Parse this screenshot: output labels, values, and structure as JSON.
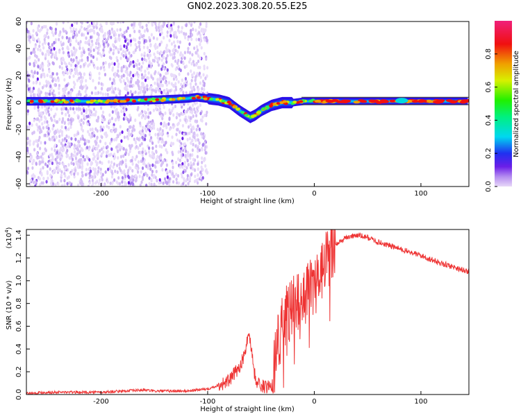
{
  "title": "GN02.2023.308.20.55.E25",
  "chart_data": [
    {
      "type": "heatmap",
      "xlabel": "Height of straight line (km)",
      "ylabel": "Frequency (Hz)",
      "xlim": [
        -270,
        145
      ],
      "ylim": [
        -62,
        60
      ],
      "xticks": [
        -200,
        -100,
        0,
        100
      ],
      "yticks": [
        -60,
        -40,
        -20,
        0,
        20,
        40,
        60
      ],
      "colorbar": {
        "label": "Normalized spectral amplitude",
        "range": [
          0.0,
          1.0
        ],
        "ticks": [
          "0.0",
          "0.2",
          "0.4",
          "0.6",
          "0.8"
        ],
        "colormap": "rainbow"
      },
      "ridge": {
        "x": [
          -270,
          -200,
          -150,
          -120,
          -110,
          -100,
          -90,
          -80,
          -70,
          -60,
          -55,
          -50,
          -40,
          -30,
          -20,
          -10,
          0,
          50,
          100,
          145
        ],
        "y": [
          1,
          1,
          2,
          3,
          4,
          3,
          2,
          0,
          -6,
          -11,
          -9,
          -6,
          -2,
          0,
          0,
          1,
          1,
          1,
          1,
          1
        ]
      }
    },
    {
      "type": "line",
      "xlabel": "Height of straight line (km)",
      "ylabel": "SNR (10 * v/v)",
      "yscale_label_base": "(x10",
      "yscale_label_exp": "4",
      "yscale_label_end": ")",
      "xlim": [
        -270,
        145
      ],
      "ylim": [
        0.0,
        1.45
      ],
      "xticks": [
        -200,
        -100,
        0,
        100
      ],
      "yticks": [
        "0.0",
        "0.2",
        "0.4",
        "0.6",
        "0.8",
        "1.0",
        "1.2",
        "1.4"
      ],
      "color": "#ee3333",
      "series": [
        {
          "x": [
            -270,
            -250,
            -200,
            -160,
            -150,
            -120,
            -100,
            -90,
            -80,
            -75,
            -70,
            -65,
            -62,
            -60,
            -58,
            -55,
            -50,
            -45,
            -40,
            -35,
            -30,
            -25,
            -20,
            -15,
            -10,
            -5,
            0,
            10,
            20,
            30,
            40,
            50,
            60,
            80,
            100,
            120,
            145
          ],
          "y": [
            0.01,
            0.02,
            0.02,
            0.04,
            0.03,
            0.03,
            0.05,
            0.08,
            0.12,
            0.18,
            0.25,
            0.35,
            0.55,
            0.48,
            0.32,
            0.12,
            0.08,
            0.06,
            0.1,
            0.45,
            0.6,
            0.72,
            0.78,
            0.82,
            0.88,
            0.92,
            0.95,
            1.15,
            1.32,
            1.38,
            1.4,
            1.38,
            1.34,
            1.28,
            1.22,
            1.15,
            1.08
          ]
        }
      ]
    }
  ]
}
